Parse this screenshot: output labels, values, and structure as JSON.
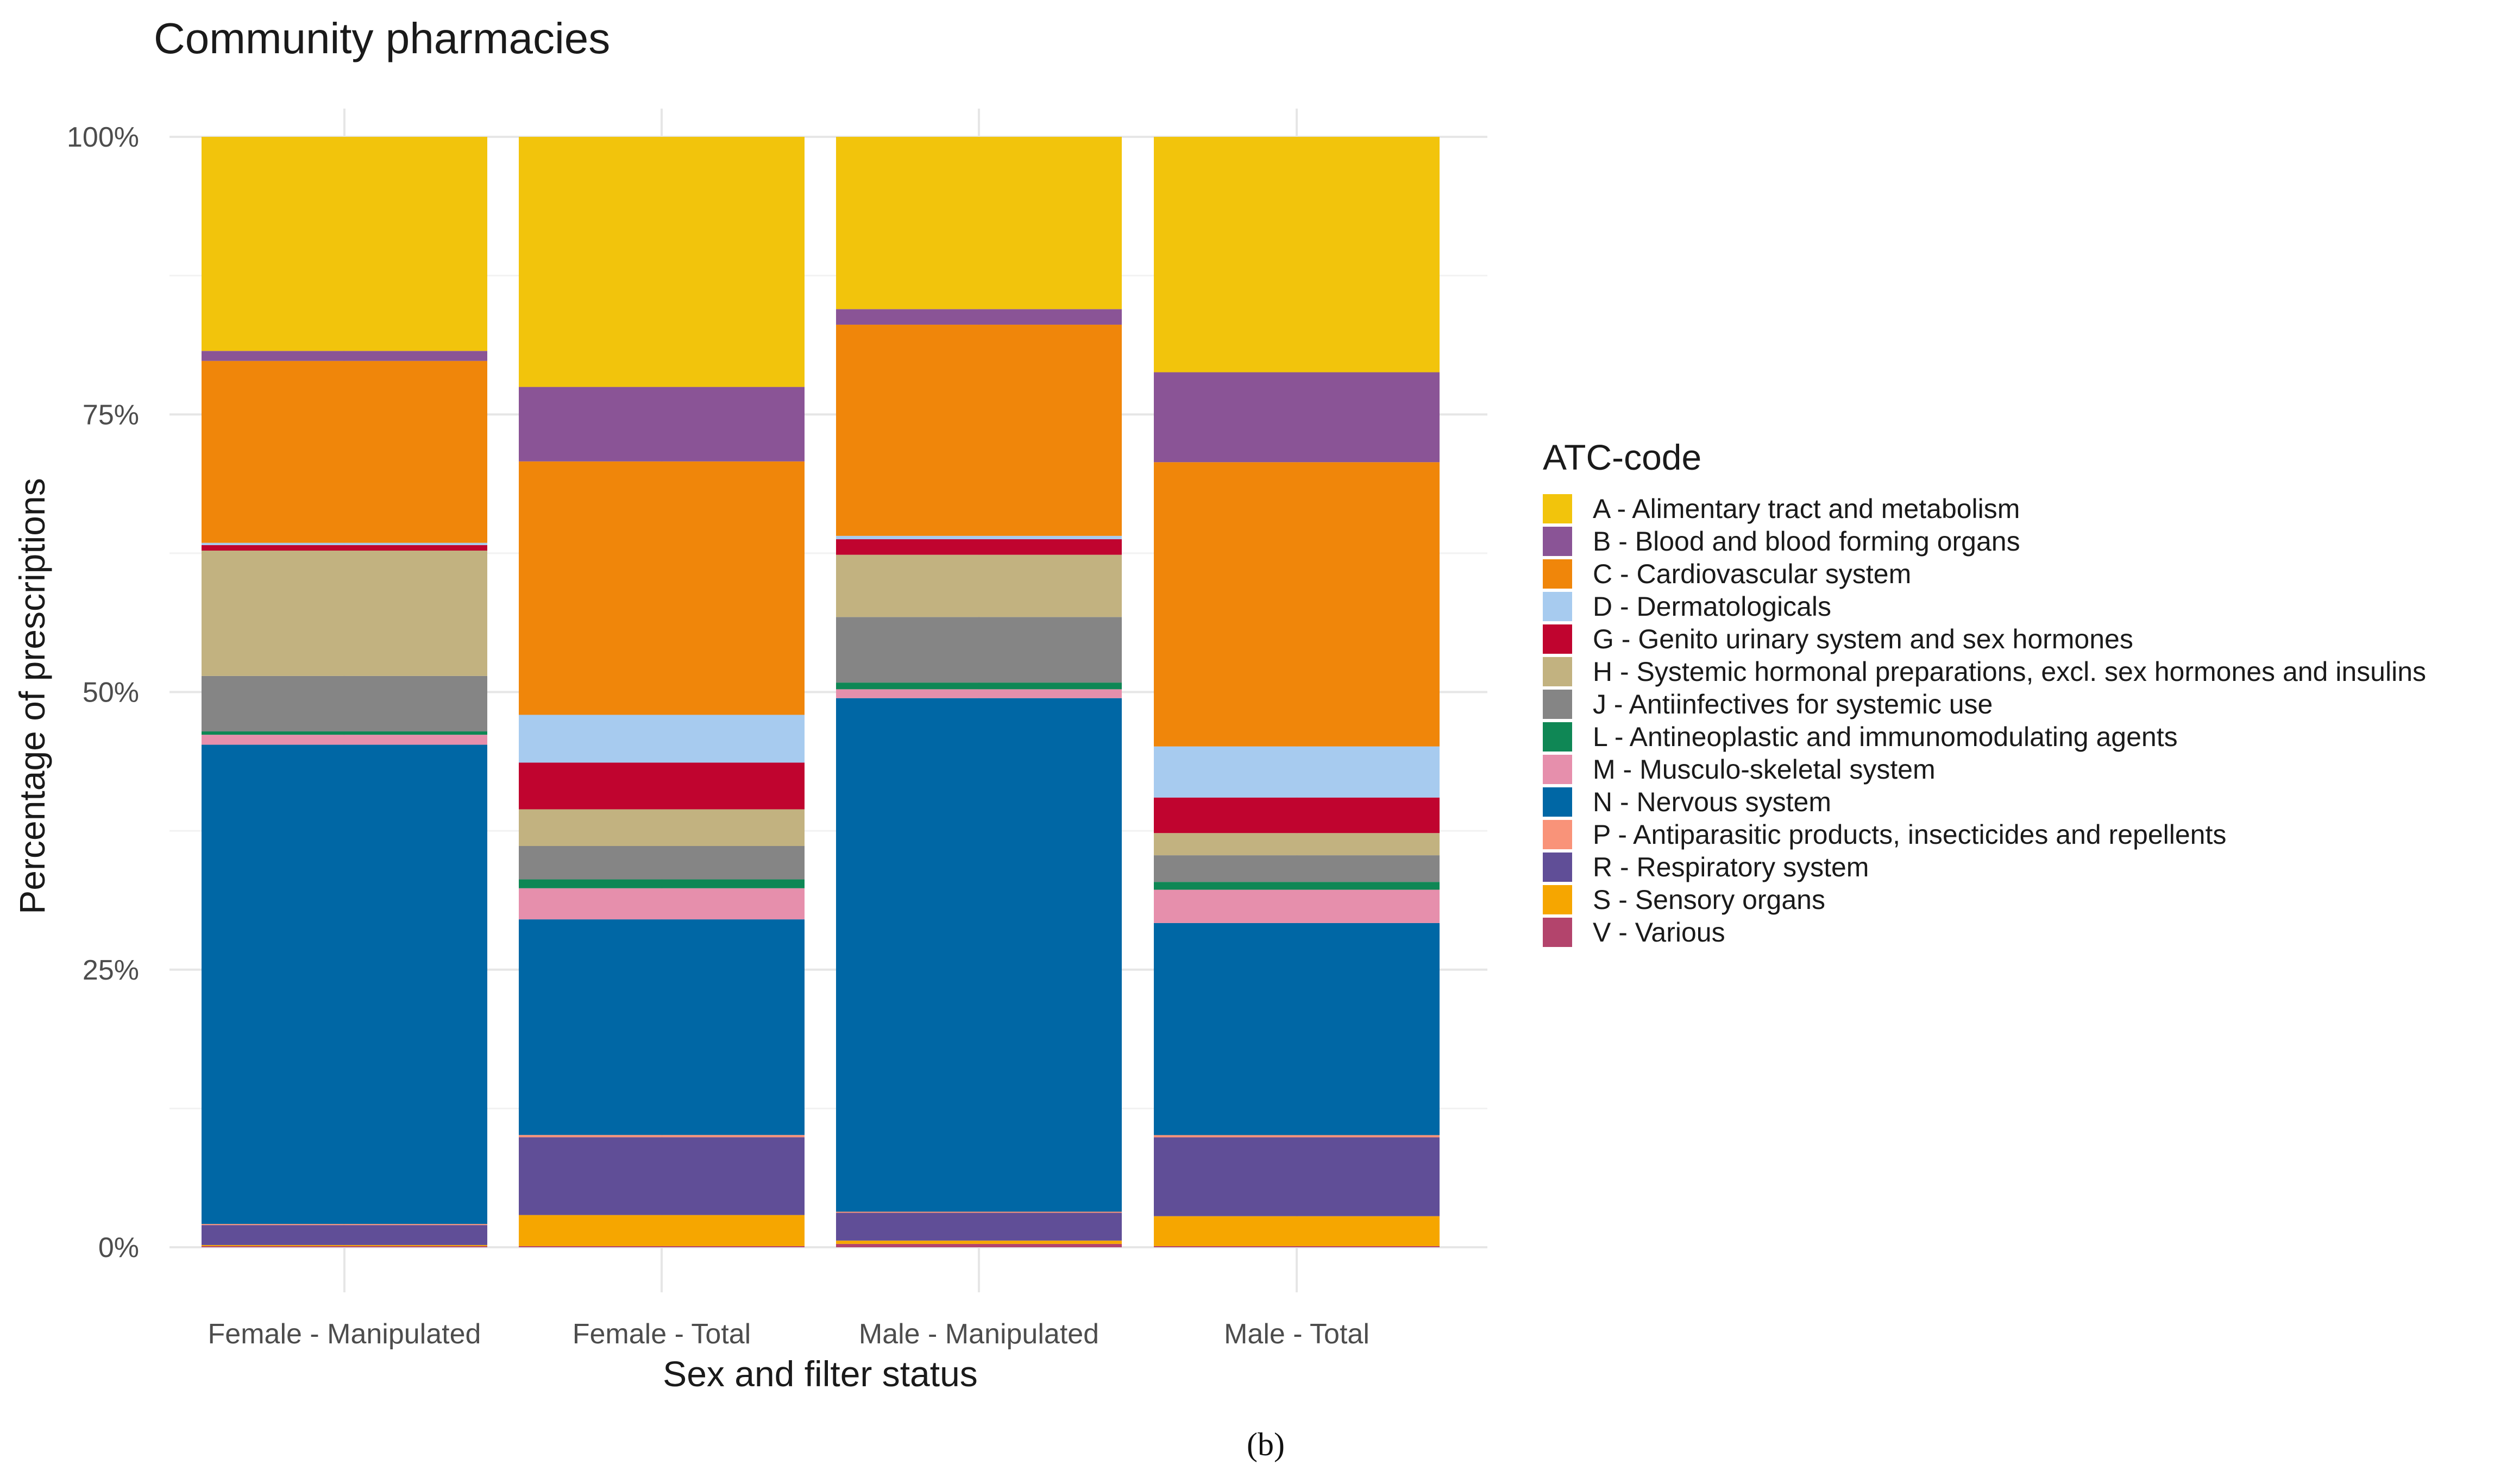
{
  "chart_data": {
    "type": "bar",
    "stacked": true,
    "normalized": true,
    "title": "Community pharmacies",
    "xlabel": "Sex and filter status",
    "ylabel": "Percentage of prescriptions",
    "ylim": [
      0,
      100
    ],
    "y_ticks": [
      "0%",
      "25%",
      "50%",
      "75%",
      "100%"
    ],
    "categories": [
      "Female - Manipulated",
      "Female - Total",
      "Male - Manipulated",
      "Male - Total"
    ],
    "legend_title": "ATC-code",
    "legend_position": "right",
    "caption": "(b)",
    "series": [
      {
        "name": "A - Alimentary tract and metabolism",
        "color": "#F2C40C",
        "values": [
          19.3,
          22.5,
          15.5,
          21.2
        ]
      },
      {
        "name": "B - Blood and blood forming organs",
        "color": "#8A5496",
        "values": [
          0.9,
          6.7,
          1.4,
          8.1
        ]
      },
      {
        "name": "C - Cardiovascular system",
        "color": "#F0860A",
        "values": [
          16.4,
          22.8,
          19.0,
          25.6
        ]
      },
      {
        "name": "D - Dermatologicals",
        "color": "#A7CBEF",
        "values": [
          0.2,
          4.3,
          0.3,
          4.6
        ]
      },
      {
        "name": "G - Genito urinary system and sex hormones",
        "color": "#C0042F",
        "values": [
          0.5,
          4.2,
          1.4,
          3.2
        ]
      },
      {
        "name": "H - Systemic hormonal preparations, excl. sex hormones and insulins",
        "color": "#C2B280",
        "values": [
          11.3,
          3.3,
          5.6,
          2.0
        ]
      },
      {
        "name": "J - Antiinfectives for systemic use",
        "color": "#858585",
        "values": [
          5.0,
          3.0,
          5.9,
          2.4
        ]
      },
      {
        "name": "L - Antineoplastic and immunomodulating agents",
        "color": "#0F8755",
        "values": [
          0.3,
          0.8,
          0.6,
          0.7
        ]
      },
      {
        "name": "M - Musculo-skeletal system",
        "color": "#E68FAC",
        "values": [
          0.9,
          2.8,
          0.8,
          3.0
        ]
      },
      {
        "name": "N - Nervous system",
        "color": "#0067A5",
        "values": [
          43.2,
          19.4,
          46.2,
          19.1
        ]
      },
      {
        "name": "P - Antiparasitic products, insecticides and repellents",
        "color": "#F99379",
        "values": [
          0.1,
          0.2,
          0.1,
          0.2
        ]
      },
      {
        "name": "R - Respiratory system",
        "color": "#604E97",
        "values": [
          1.8,
          7.0,
          2.5,
          7.1
        ]
      },
      {
        "name": "S - Sensory organs",
        "color": "#F6A600",
        "values": [
          0.1,
          2.8,
          0.3,
          2.7
        ]
      },
      {
        "name": "V - Various",
        "color": "#B3446C",
        "values": [
          0.1,
          0.1,
          0.3,
          0.1
        ]
      }
    ]
  }
}
